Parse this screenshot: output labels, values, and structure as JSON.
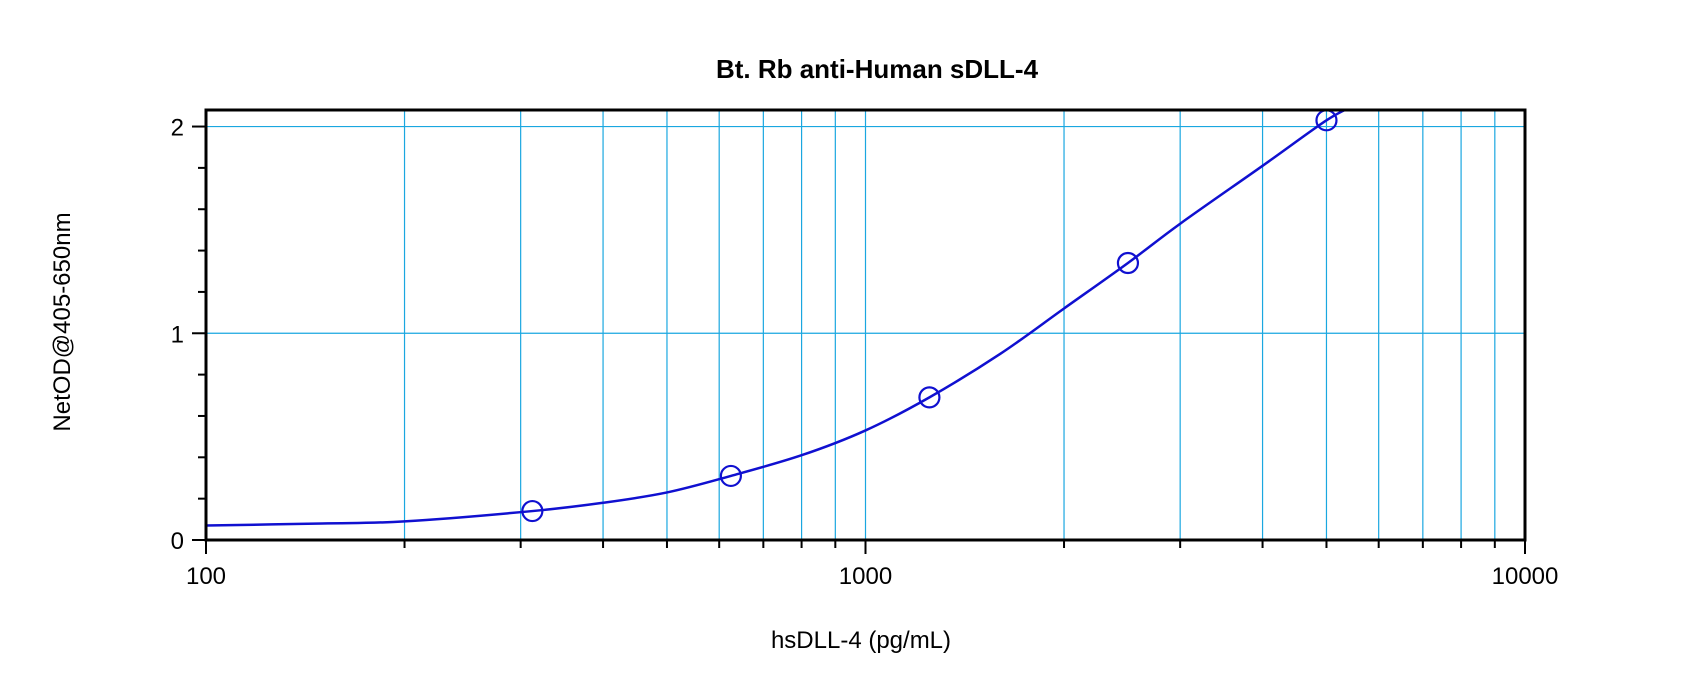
{
  "chart_data": {
    "type": "scatter",
    "title": "Bt. Rb anti-Human sDLL-4",
    "xlabel": "hsDLL-4 (pg/mL)",
    "ylabel": "NetOD@405-650nm",
    "x_scale": "log",
    "xlim": [
      100,
      10000
    ],
    "ylim": [
      0,
      2.08
    ],
    "x_ticks": [
      100,
      1000,
      10000
    ],
    "x_tick_labels": [
      "100",
      "1000",
      "10000"
    ],
    "y_ticks": [
      0,
      1,
      2
    ],
    "y_tick_labels": [
      "0",
      "1",
      "2"
    ],
    "grid": true,
    "legend": "none",
    "series": [
      {
        "points": [
          {
            "x": 312.5,
            "y": 0.14
          },
          {
            "x": 625,
            "y": 0.31
          },
          {
            "x": 1250,
            "y": 0.69
          },
          {
            "x": 2500,
            "y": 1.34
          },
          {
            "x": 5000,
            "y": 2.03
          }
        ],
        "fit_curve": {
          "x": [
            100,
            150,
            200,
            312.5,
            400,
            500,
            625,
            800,
            1000,
            1250,
            1600,
            2000,
            2500,
            3000,
            4000,
            5000,
            5500
          ],
          "y": [
            0.07,
            0.08,
            0.09,
            0.14,
            0.18,
            0.23,
            0.31,
            0.41,
            0.53,
            0.69,
            0.9,
            1.12,
            1.34,
            1.53,
            1.81,
            2.03,
            2.1
          ]
        }
      }
    ],
    "colors": {
      "grid": "#1aa7e0",
      "series": "#1010d0",
      "frame": "#000000"
    }
  }
}
